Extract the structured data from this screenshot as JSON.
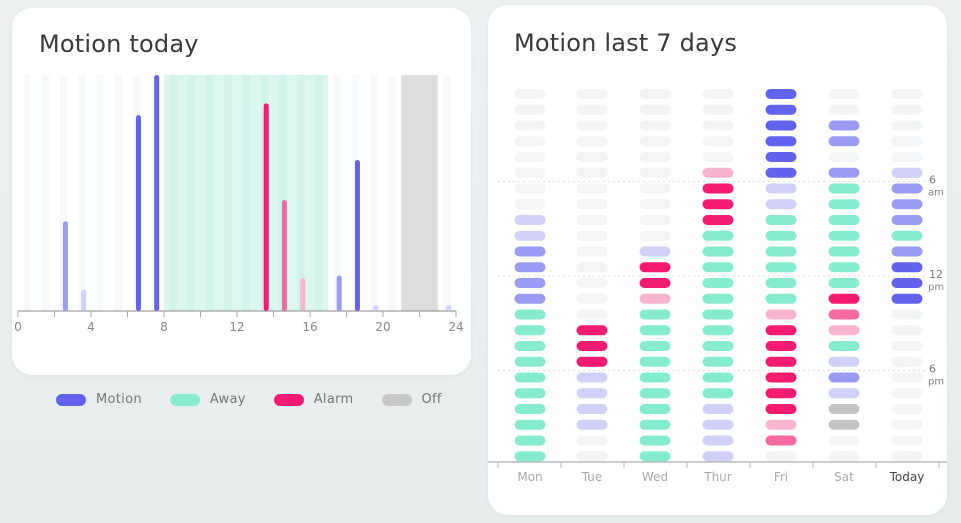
{
  "colors": {
    "motion": "#6163ee",
    "motion_light": "#9a9cf4",
    "motion_faint": "#d0d0f8",
    "away": "#86eccf",
    "away_band": "#dcf7f0",
    "alarm": "#f51b72",
    "alarm_mid": "#f56aa2",
    "alarm_light": "#f8b4cf",
    "off": "#dcdddf",
    "off_cell": "#c4c4c4",
    "empty": "#f3f4f6"
  },
  "chart_data": [
    {
      "type": "bar",
      "title": "Motion today",
      "x_ticks": [
        "0",
        "4",
        "8",
        "12",
        "16",
        "20",
        "24"
      ],
      "xlim": [
        0,
        24
      ],
      "ylim": [
        0,
        1
      ],
      "bands": [
        {
          "kind": "away",
          "from": 8,
          "to": 17
        },
        {
          "kind": "off",
          "from": 21,
          "to": 23
        }
      ],
      "events": [
        {
          "hour": 2.6,
          "value": 0.38,
          "level": "motion_light"
        },
        {
          "hour": 3.6,
          "value": 0.09,
          "level": "motion_faint"
        },
        {
          "hour": 6.6,
          "value": 0.83,
          "level": "motion"
        },
        {
          "hour": 7.6,
          "value": 1.0,
          "level": "motion"
        },
        {
          "hour": 13.6,
          "value": 0.88,
          "level": "alarm"
        },
        {
          "hour": 14.6,
          "value": 0.47,
          "level": "alarm_mid"
        },
        {
          "hour": 15.6,
          "value": 0.14,
          "level": "alarm_light"
        },
        {
          "hour": 17.6,
          "value": 0.15,
          "level": "motion_light"
        },
        {
          "hour": 18.6,
          "value": 0.64,
          "level": "motion"
        },
        {
          "hour": 19.6,
          "value": 0.02,
          "level": "motion_faint"
        },
        {
          "hour": 23.6,
          "value": 0.02,
          "level": "motion_faint"
        }
      ]
    },
    {
      "type": "heatmap",
      "title": "Motion last 7 days",
      "days": [
        "Mon",
        "Tue",
        "Wed",
        "Thur",
        "Fri",
        "Sat",
        "Today"
      ],
      "today_index": 6,
      "time_labels": [
        {
          "slot": 6,
          "main": "6",
          "sub": "am"
        },
        {
          "slot": 12,
          "main": "12",
          "sub": "pm"
        },
        {
          "slot": 18,
          "main": "6",
          "sub": "pm"
        }
      ],
      "slots_per_day": 24,
      "key": {
        "e": "empty",
        "m": "motion",
        "l": "motion_light",
        "f": "motion_faint",
        "w": "away",
        "a": "alarm",
        "r": "alarm_mid",
        "p": "alarm_light",
        "o": "off_cell"
      },
      "grid": [
        "eeeeeeeeffllllwwwwwwwwww",
        "eeeeeeeeeeeeeeeaaaffffee",
        "eeeeeeeeeefaapwwwwwwwwww",
        "eeeeepaaawwwwwwwwwwwffff",
        "mmmmmmffwwwwwwpaaaaaapre",
        "eellelwwwwwwwarpwflfooee",
        "eeeeeflllwlmmmeeeeeeeeee"
      ]
    }
  ],
  "legend": [
    {
      "label": "Motion",
      "color": "#6163ee"
    },
    {
      "label": "Away",
      "color": "#86eccf"
    },
    {
      "label": "Alarm",
      "color": "#f51b72"
    },
    {
      "label": "Off",
      "color": "#c8c8c8"
    }
  ]
}
